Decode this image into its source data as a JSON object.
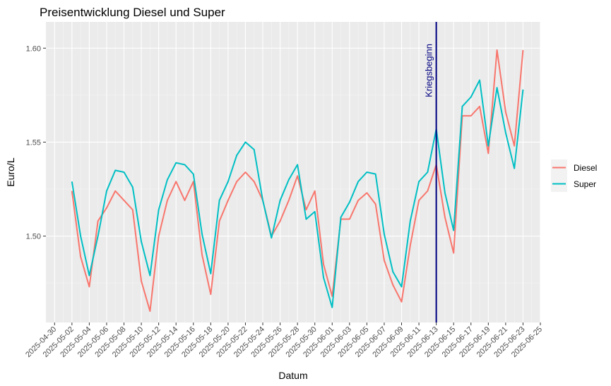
{
  "chart_data": {
    "type": "line",
    "title": "Preisentwicklung Diesel und Super",
    "xlabel": "Datum",
    "ylabel": "Euro/L",
    "x_tick_labels": [
      "2025-04-30",
      "2025-05-02",
      "2025-05-04",
      "2025-05-06",
      "2025-05-08",
      "2025-05-10",
      "2025-05-12",
      "2025-05-14",
      "2025-05-16",
      "2025-05-18",
      "2025-05-20",
      "2025-05-22",
      "2025-05-24",
      "2025-05-26",
      "2025-05-28",
      "2025-05-30",
      "2025-06-01",
      "2025-06-03",
      "2025-06-05",
      "2025-06-07",
      "2025-06-09",
      "2025-06-11",
      "2025-06-13",
      "2025-06-15",
      "2025-06-17",
      "2025-06-19",
      "2025-06-21",
      "2025-06-23",
      "2025-06-25"
    ],
    "y_ticks": [
      1.5,
      1.55,
      1.6
    ],
    "y_tick_labels": [
      "1.50",
      "1.55",
      "1.60"
    ],
    "ylim": [
      1.454,
      1.614
    ],
    "xlim": [
      "2025-04-29",
      "2025-06-25"
    ],
    "grid": true,
    "legend_position": "right",
    "colors": {
      "Diesel": "#F8766D",
      "Super": "#00BFC4",
      "annotation": "#000080"
    },
    "x": [
      "2025-05-02",
      "2025-05-03",
      "2025-05-04",
      "2025-05-05",
      "2025-05-06",
      "2025-05-07",
      "2025-05-08",
      "2025-05-09",
      "2025-05-10",
      "2025-05-11",
      "2025-05-12",
      "2025-05-13",
      "2025-05-14",
      "2025-05-15",
      "2025-05-16",
      "2025-05-17",
      "2025-05-18",
      "2025-05-19",
      "2025-05-20",
      "2025-05-21",
      "2025-05-22",
      "2025-05-23",
      "2025-05-24",
      "2025-05-25",
      "2025-05-26",
      "2025-05-27",
      "2025-05-28",
      "2025-05-29",
      "2025-05-30",
      "2025-05-31",
      "2025-06-01",
      "2025-06-02",
      "2025-06-03",
      "2025-06-04",
      "2025-06-05",
      "2025-06-06",
      "2025-06-07",
      "2025-06-08",
      "2025-06-09",
      "2025-06-10",
      "2025-06-11",
      "2025-06-12",
      "2025-06-13",
      "2025-06-14",
      "2025-06-15",
      "2025-06-16",
      "2025-06-17",
      "2025-06-18",
      "2025-06-19",
      "2025-06-20",
      "2025-06-21",
      "2025-06-22",
      "2025-06-23"
    ],
    "series": [
      {
        "name": "Diesel",
        "values": [
          1.524,
          1.489,
          1.473,
          1.508,
          1.515,
          1.524,
          1.519,
          1.514,
          1.476,
          1.46,
          1.5,
          1.519,
          1.529,
          1.519,
          1.529,
          1.49,
          1.469,
          1.508,
          1.519,
          1.529,
          1.534,
          1.529,
          1.519,
          1.5,
          1.508,
          1.519,
          1.532,
          1.514,
          1.524,
          1.485,
          1.468,
          1.509,
          1.509,
          1.519,
          1.523,
          1.517,
          1.487,
          1.474,
          1.465,
          1.495,
          1.519,
          1.524,
          1.538,
          1.51,
          1.491,
          1.564,
          1.564,
          1.569,
          1.544,
          1.599,
          1.566,
          1.548,
          1.599
        ]
      },
      {
        "name": "Super",
        "values": [
          1.529,
          1.5,
          1.479,
          1.5,
          1.524,
          1.535,
          1.534,
          1.526,
          1.497,
          1.479,
          1.514,
          1.53,
          1.539,
          1.538,
          1.533,
          1.501,
          1.48,
          1.519,
          1.529,
          1.543,
          1.55,
          1.546,
          1.519,
          1.499,
          1.519,
          1.53,
          1.538,
          1.509,
          1.513,
          1.478,
          1.462,
          1.51,
          1.518,
          1.529,
          1.534,
          1.533,
          1.501,
          1.481,
          1.473,
          1.508,
          1.529,
          1.534,
          1.557,
          1.523,
          1.503,
          1.569,
          1.574,
          1.583,
          1.548,
          1.579,
          1.555,
          1.536,
          1.578
        ]
      }
    ],
    "annotations": [
      {
        "x": "2025-06-13",
        "label": "Kriegsbeginn",
        "type": "vline"
      }
    ]
  }
}
